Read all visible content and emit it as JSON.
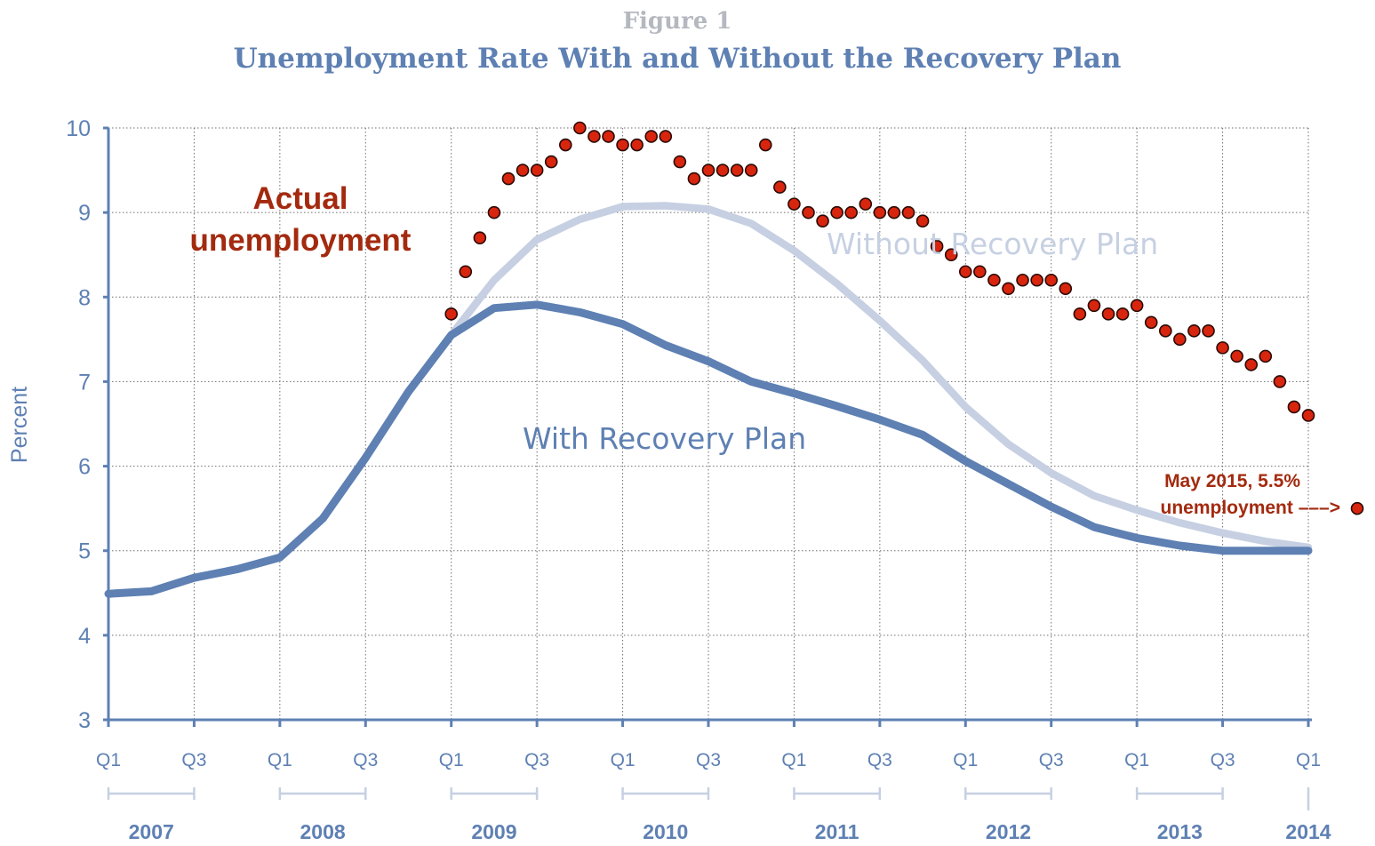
{
  "header": {
    "figure_label": "Figure 1",
    "title": "Unemployment Rate With and Without the Recovery Plan"
  },
  "chart_data": {
    "type": "line",
    "title": "Unemployment Rate With and Without the Recovery Plan",
    "ylabel": "Percent",
    "ylim": [
      3,
      10
    ],
    "yticks": [
      3,
      4,
      5,
      6,
      7,
      8,
      9,
      10
    ],
    "xlim": [
      2007.0,
      2014.0
    ],
    "quarter_ticks": [
      {
        "label": "Q1",
        "x": 2007.0
      },
      {
        "label": "Q3",
        "x": 2007.5
      },
      {
        "label": "Q1",
        "x": 2008.0
      },
      {
        "label": "Q3",
        "x": 2008.5
      },
      {
        "label": "Q1",
        "x": 2009.0
      },
      {
        "label": "Q3",
        "x": 2009.5
      },
      {
        "label": "Q1",
        "x": 2010.0
      },
      {
        "label": "Q3",
        "x": 2010.5
      },
      {
        "label": "Q1",
        "x": 2011.0
      },
      {
        "label": "Q3",
        "x": 2011.5
      },
      {
        "label": "Q1",
        "x": 2012.0
      },
      {
        "label": "Q3",
        "x": 2012.5
      },
      {
        "label": "Q1",
        "x": 2013.0
      },
      {
        "label": "Q3",
        "x": 2013.5
      },
      {
        "label": "Q1",
        "x": 2014.0
      }
    ],
    "years": [
      {
        "label": "2007",
        "start": 2007.0,
        "end": 2007.5
      },
      {
        "label": "2008",
        "start": 2008.0,
        "end": 2008.5
      },
      {
        "label": "2009",
        "start": 2009.0,
        "end": 2009.5
      },
      {
        "label": "2010",
        "start": 2010.0,
        "end": 2010.5
      },
      {
        "label": "2011",
        "start": 2011.0,
        "end": 2011.5
      },
      {
        "label": "2012",
        "start": 2012.0,
        "end": 2012.5
      },
      {
        "label": "2013",
        "start": 2013.0,
        "end": 2013.5
      },
      {
        "label": "2014",
        "start": 2014.0,
        "end": 2014.0
      }
    ],
    "grid": true,
    "series": [
      {
        "name": "Without Recovery Plan",
        "color": "#c6d0e2",
        "style": "line",
        "x": [
          2009.0,
          2009.25,
          2009.5,
          2009.75,
          2010.0,
          2010.25,
          2010.5,
          2010.75,
          2011.0,
          2011.25,
          2011.5,
          2011.75,
          2012.0,
          2012.25,
          2012.5,
          2012.75,
          2013.0,
          2013.25,
          2013.5,
          2013.75,
          2014.0
        ],
        "y": [
          7.55,
          8.2,
          8.68,
          8.92,
          9.07,
          9.08,
          9.04,
          8.87,
          8.55,
          8.16,
          7.72,
          7.25,
          6.7,
          6.26,
          5.92,
          5.65,
          5.48,
          5.33,
          5.21,
          5.11,
          5.04
        ]
      },
      {
        "name": "With Recovery Plan",
        "color": "#5e80b3",
        "style": "line",
        "x": [
          2007.0,
          2007.25,
          2007.5,
          2007.75,
          2008.0,
          2008.25,
          2008.5,
          2008.75,
          2009.0,
          2009.25,
          2009.5,
          2009.75,
          2010.0,
          2010.25,
          2010.5,
          2010.75,
          2011.0,
          2011.25,
          2011.5,
          2011.75,
          2012.0,
          2012.25,
          2012.5,
          2012.75,
          2013.0,
          2013.25,
          2013.5,
          2013.75,
          2014.0
        ],
        "y": [
          4.49,
          4.52,
          4.68,
          4.78,
          4.92,
          5.38,
          6.1,
          6.88,
          7.55,
          7.87,
          7.91,
          7.82,
          7.68,
          7.43,
          7.24,
          7.0,
          6.86,
          6.71,
          6.55,
          6.37,
          6.06,
          5.79,
          5.52,
          5.28,
          5.15,
          5.06,
          5.0,
          5.0,
          5.0
        ]
      },
      {
        "name": "Actual unemployment",
        "color": "#d8250e",
        "style": "dots",
        "x": [
          2009.0,
          2009.0833,
          2009.1667,
          2009.25,
          2009.3333,
          2009.4167,
          2009.5,
          2009.5833,
          2009.6667,
          2009.75,
          2009.8333,
          2009.9167,
          2010.0,
          2010.0833,
          2010.1667,
          2010.25,
          2010.3333,
          2010.4167,
          2010.5,
          2010.5833,
          2010.6667,
          2010.75,
          2010.8333,
          2010.9167,
          2011.0,
          2011.0833,
          2011.1667,
          2011.25,
          2011.3333,
          2011.4167,
          2011.5,
          2011.5833,
          2011.6667,
          2011.75,
          2011.8333,
          2011.9167,
          2012.0,
          2012.0833,
          2012.1667,
          2012.25,
          2012.3333,
          2012.4167,
          2012.5,
          2012.5833,
          2012.6667,
          2012.75,
          2012.8333,
          2012.9167,
          2013.0,
          2013.0833,
          2013.1667,
          2013.25,
          2013.3333,
          2013.4167,
          2013.5,
          2013.5833,
          2013.6667,
          2013.75,
          2013.8333,
          2013.9167,
          2014.0
        ],
        "y": [
          7.8,
          8.3,
          8.7,
          9.0,
          9.4,
          9.5,
          9.5,
          9.6,
          9.8,
          10.0,
          9.9,
          9.9,
          9.8,
          9.8,
          9.9,
          9.9,
          9.6,
          9.4,
          9.5,
          9.5,
          9.5,
          9.5,
          9.8,
          9.3,
          9.1,
          9.0,
          8.9,
          9.0,
          9.0,
          9.1,
          9.0,
          9.0,
          9.0,
          8.9,
          8.6,
          8.5,
          8.3,
          8.3,
          8.2,
          8.1,
          8.2,
          8.2,
          8.2,
          8.1,
          7.8,
          7.9,
          7.8,
          7.8,
          7.9,
          7.7,
          7.6,
          7.5,
          7.6,
          7.6,
          7.4,
          7.3,
          7.2,
          7.3,
          7.0,
          6.7,
          6.6
        ]
      }
    ],
    "annotations": {
      "actual_line1": "Actual",
      "actual_line2": "unemployment",
      "without_label": "Without Recovery Plan",
      "with_label": "With Recovery Plan",
      "note_line1": "May 2015, 5.5%",
      "note_line2": "unemployment –––>",
      "note_point": {
        "y": 5.5
      }
    }
  }
}
